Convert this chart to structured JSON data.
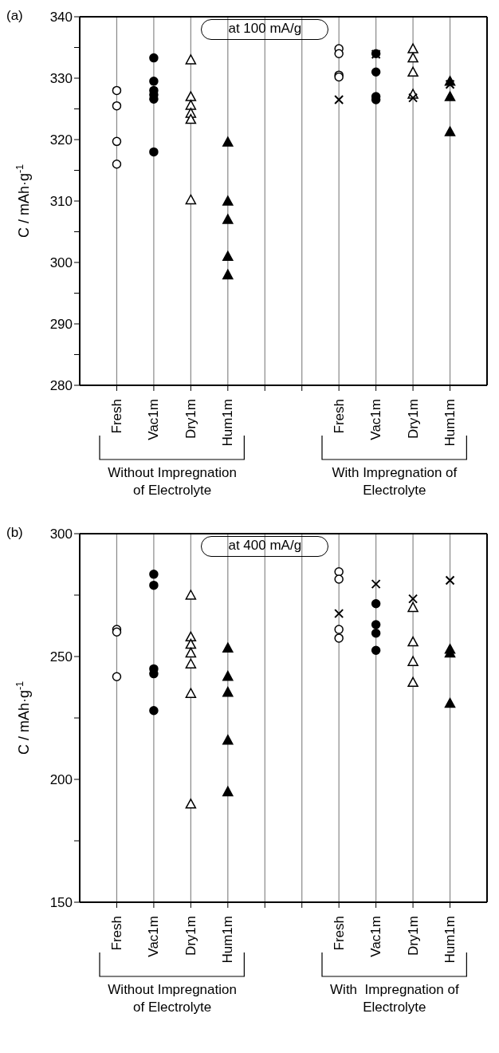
{
  "chart_data": [
    {
      "type": "scatter",
      "title": "(a)",
      "ylabel": "C / mAh·g$^{-1}$",
      "annotations": [
        "at 100 mA/g",
        "Without Impregnation of Electrolyte",
        "With Impregnation of Electrolyte"
      ],
      "categories": [
        "Fresh",
        "Vac1m",
        "Dry1m",
        "Hum1m",
        null,
        null,
        "Fresh",
        "Vac1m",
        "Dry1m",
        "Hum1m"
      ],
      "ylim": [
        280,
        340
      ],
      "yticks": [
        280,
        {
          "value": 285,
          "label": null
        },
        290,
        {
          "value": 295,
          "label": null
        },
        300,
        {
          "value": 305,
          "label": null
        },
        310,
        {
          "value": 315,
          "label": null
        },
        320,
        {
          "value": 325,
          "label": null
        },
        330,
        {
          "value": 335,
          "label": null
        },
        340
      ],
      "grid": "x",
      "series": [
        {
          "color": "#ffffff",
          "marker": "circle",
          "values": [
            328,
            null,
            null,
            null,
            null,
            null,
            334.8,
            null,
            null,
            null
          ]
        },
        {
          "color": "#ffffff",
          "marker": "circle",
          "values": [
            325.5,
            null,
            null,
            null,
            null,
            null,
            334,
            null,
            null,
            null
          ]
        },
        {
          "color": "#ffffff",
          "marker": "circle",
          "values": [
            319.7,
            null,
            null,
            null,
            null,
            null,
            330.5,
            null,
            null,
            null
          ]
        },
        {
          "color": "#ffffff",
          "marker": "circle",
          "values": [
            316,
            null,
            null,
            null,
            null,
            null,
            330.2,
            null,
            null,
            null
          ]
        },
        {
          "color": "#000000",
          "marker": "circle",
          "values": [
            null,
            333.3,
            null,
            null,
            null,
            null,
            null,
            334,
            null,
            null
          ]
        },
        {
          "color": "#000000",
          "marker": "circle",
          "values": [
            null,
            329.5,
            null,
            null,
            null,
            null,
            null,
            331,
            null,
            null
          ]
        },
        {
          "color": "#000000",
          "marker": "circle",
          "values": [
            null,
            328,
            null,
            null,
            null,
            null,
            null,
            327,
            null,
            null
          ]
        },
        {
          "color": "#000000",
          "marker": "circle",
          "values": [
            null,
            327.3,
            null,
            null,
            null,
            null,
            null,
            326.5,
            null,
            null
          ]
        },
        {
          "color": "#000000",
          "marker": "circle",
          "values": [
            null,
            326.6,
            null,
            null,
            null,
            null,
            null,
            null,
            null,
            null
          ]
        },
        {
          "color": "#000000",
          "marker": "circle",
          "values": [
            null,
            318,
            null,
            null,
            null,
            null,
            null,
            null,
            null,
            null
          ]
        },
        {
          "color": "#ffffff",
          "marker": "triangle",
          "values": [
            null,
            null,
            333,
            null,
            null,
            null,
            null,
            null,
            334.8,
            null
          ]
        },
        {
          "color": "#ffffff",
          "marker": "triangle",
          "values": [
            null,
            null,
            327,
            null,
            null,
            null,
            null,
            null,
            333.3,
            null
          ]
        },
        {
          "color": "#ffffff",
          "marker": "triangle",
          "values": [
            null,
            null,
            325.6,
            null,
            null,
            null,
            null,
            null,
            331,
            null
          ]
        },
        {
          "color": "#ffffff",
          "marker": "triangle",
          "values": [
            null,
            null,
            324.3,
            null,
            null,
            null,
            null,
            null,
            327.4,
            null
          ]
        },
        {
          "color": "#ffffff",
          "marker": "triangle",
          "values": [
            null,
            null,
            323.3,
            null,
            null,
            null,
            null,
            null,
            null,
            null
          ]
        },
        {
          "color": "#ffffff",
          "marker": "triangle",
          "values": [
            null,
            null,
            310.2,
            null,
            null,
            null,
            null,
            null,
            null,
            null
          ]
        },
        {
          "color": "#000000",
          "marker": "triangle",
          "values": [
            null,
            null,
            null,
            319.6,
            null,
            null,
            null,
            null,
            null,
            329.5
          ]
        },
        {
          "color": "#000000",
          "marker": "triangle",
          "values": [
            null,
            null,
            null,
            310,
            null,
            null,
            null,
            null,
            null,
            327
          ]
        },
        {
          "color": "#000000",
          "marker": "triangle",
          "values": [
            null,
            null,
            null,
            307,
            null,
            null,
            null,
            null,
            null,
            321.3
          ]
        },
        {
          "color": "#000000",
          "marker": "triangle",
          "values": [
            null,
            null,
            null,
            301,
            null,
            null,
            null,
            null,
            null,
            null
          ]
        },
        {
          "color": "#000000",
          "marker": "triangle",
          "values": [
            null,
            null,
            null,
            298,
            null,
            null,
            null,
            null,
            null,
            null
          ]
        },
        {
          "color": "#000000",
          "marker": "cross",
          "values": [
            null,
            null,
            null,
            null,
            null,
            null,
            326.5,
            333.9,
            326.8,
            329
          ]
        }
      ]
    },
    {
      "type": "scatter",
      "title": "(b)",
      "ylabel": "C / mAh·g$^{-1}$",
      "annotations": [
        "at 400 mA/g",
        "Without Impregnation of Electrolyte",
        "With  Impregnation of Electrolyte"
      ],
      "categories": [
        "Fresh",
        "Vac1m",
        "Dry1m",
        "Hum1m",
        null,
        null,
        "Fresh",
        "Vac1m",
        "Dry1m",
        "Hum1m"
      ],
      "ylim": [
        150,
        300
      ],
      "yticks": [
        150,
        {
          "value": 175,
          "label": null
        },
        200,
        {
          "value": 225,
          "label": null
        },
        250,
        {
          "value": 275,
          "label": null
        },
        300
      ],
      "grid": "x",
      "series": [
        {
          "color": "#ffffff",
          "marker": "circle",
          "values": [
            261,
            null,
            null,
            null,
            null,
            null,
            284.5,
            null,
            null,
            null
          ]
        },
        {
          "color": "#ffffff",
          "marker": "circle",
          "values": [
            260,
            null,
            null,
            null,
            null,
            null,
            281.5,
            null,
            null,
            null
          ]
        },
        {
          "color": "#ffffff",
          "marker": "circle",
          "values": [
            241.8,
            null,
            null,
            null,
            null,
            null,
            261,
            null,
            null,
            null
          ]
        },
        {
          "color": "#ffffff",
          "marker": "circle",
          "values": [
            null,
            null,
            null,
            null,
            null,
            null,
            257.5,
            null,
            null,
            null
          ]
        },
        {
          "color": "#000000",
          "marker": "circle",
          "values": [
            null,
            283.5,
            null,
            null,
            null,
            null,
            null,
            271.5,
            null,
            null
          ]
        },
        {
          "color": "#000000",
          "marker": "circle",
          "values": [
            null,
            279,
            null,
            null,
            null,
            null,
            null,
            263,
            null,
            null
          ]
        },
        {
          "color": "#000000",
          "marker": "circle",
          "values": [
            null,
            245,
            null,
            null,
            null,
            null,
            null,
            259.5,
            null,
            null
          ]
        },
        {
          "color": "#000000",
          "marker": "circle",
          "values": [
            null,
            243,
            null,
            null,
            null,
            null,
            null,
            252.5,
            null,
            null
          ]
        },
        {
          "color": "#000000",
          "marker": "circle",
          "values": [
            null,
            228,
            null,
            null,
            null,
            null,
            null,
            null,
            null,
            null
          ]
        },
        {
          "color": "#ffffff",
          "marker": "triangle",
          "values": [
            null,
            null,
            275,
            null,
            null,
            null,
            null,
            null,
            270,
            null
          ]
        },
        {
          "color": "#ffffff",
          "marker": "triangle",
          "values": [
            null,
            null,
            258,
            null,
            null,
            null,
            null,
            null,
            256,
            null
          ]
        },
        {
          "color": "#ffffff",
          "marker": "triangle",
          "values": [
            null,
            null,
            255,
            null,
            null,
            null,
            null,
            null,
            248,
            null
          ]
        },
        {
          "color": "#ffffff",
          "marker": "triangle",
          "values": [
            null,
            null,
            251.5,
            null,
            null,
            null,
            null,
            null,
            239.5,
            null
          ]
        },
        {
          "color": "#ffffff",
          "marker": "triangle",
          "values": [
            null,
            null,
            247,
            null,
            null,
            null,
            null,
            null,
            null,
            null
          ]
        },
        {
          "color": "#ffffff",
          "marker": "triangle",
          "values": [
            null,
            null,
            235,
            null,
            null,
            null,
            null,
            null,
            null,
            null
          ]
        },
        {
          "color": "#ffffff",
          "marker": "triangle",
          "values": [
            null,
            null,
            190,
            null,
            null,
            null,
            null,
            null,
            null,
            null
          ]
        },
        {
          "color": "#000000",
          "marker": "triangle",
          "values": [
            null,
            null,
            null,
            253.5,
            null,
            null,
            null,
            null,
            null,
            253
          ]
        },
        {
          "color": "#000000",
          "marker": "triangle",
          "values": [
            null,
            null,
            null,
            242,
            null,
            null,
            null,
            null,
            null,
            251.5
          ]
        },
        {
          "color": "#000000",
          "marker": "triangle",
          "values": [
            null,
            null,
            null,
            235.5,
            null,
            null,
            null,
            null,
            null,
            231
          ]
        },
        {
          "color": "#000000",
          "marker": "triangle",
          "values": [
            null,
            null,
            null,
            216,
            null,
            null,
            null,
            null,
            null,
            null
          ]
        },
        {
          "color": "#000000",
          "marker": "triangle",
          "values": [
            null,
            null,
            null,
            195,
            null,
            null,
            null,
            null,
            null,
            null
          ]
        },
        {
          "color": "#000000",
          "marker": "cross",
          "values": [
            null,
            null,
            null,
            null,
            null,
            null,
            267.5,
            279.5,
            273.5,
            281
          ]
        }
      ]
    }
  ]
}
